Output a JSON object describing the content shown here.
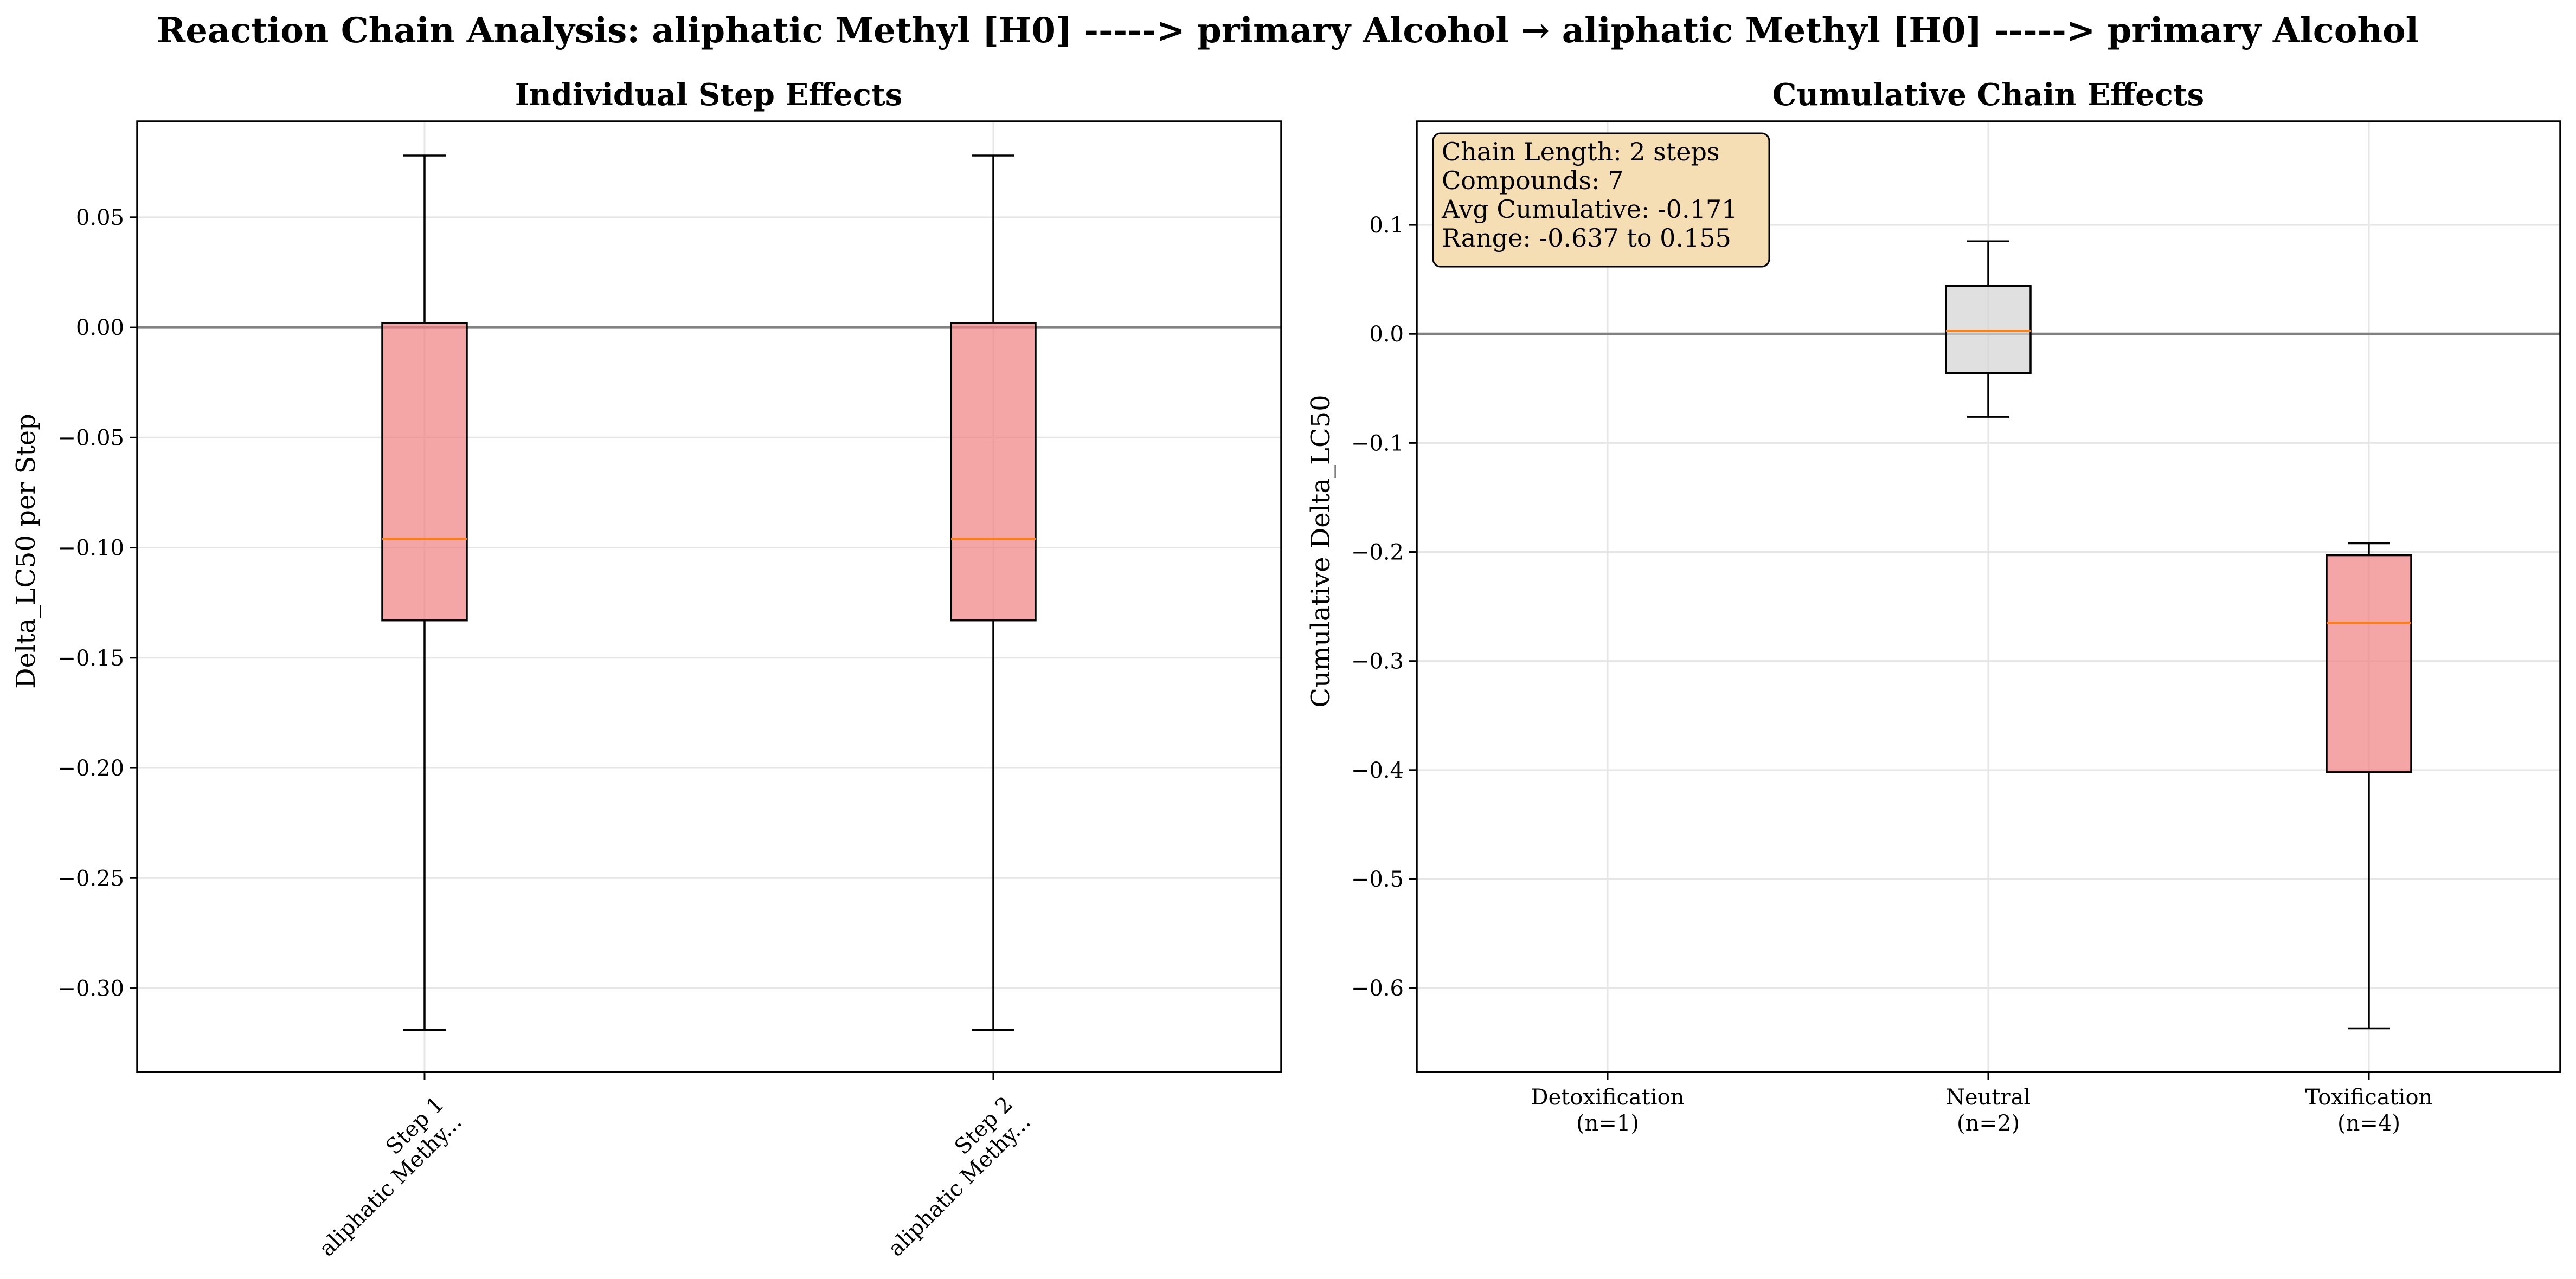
{
  "suptitle": "Reaction Chain Analysis: aliphatic Methyl [H0] -----> primary Alcohol → aliphatic Methyl [H0] -----> primary Alcohol",
  "colors": {
    "red_box": "#f08080",
    "gray_box": "#d3d3d3",
    "median": "#ff7f0e",
    "zero_line": "#808080",
    "grid": "#e6e6e6",
    "info_bg": "#f5deb3"
  },
  "chart_data": [
    {
      "type": "box",
      "title": "Individual Step Effects",
      "xlabel": "",
      "ylabel": "Delta_LC50 per Step",
      "ylim": [
        -0.338,
        0.0935
      ],
      "yticks": [
        0.05,
        0.0,
        -0.05,
        -0.1,
        -0.15,
        -0.2,
        -0.25,
        -0.3
      ],
      "ytick_labels": [
        "0.05",
        "0.00",
        "−0.05",
        "−0.10",
        "−0.15",
        "−0.20",
        "−0.25",
        "−0.30"
      ],
      "grid": true,
      "zero_line": true,
      "categories": [
        "Step 1\naliphatic Methy...",
        "Step 2\naliphatic Methy..."
      ],
      "boxes": [
        {
          "whisker_low": -0.319,
          "q1": -0.133,
          "median": -0.096,
          "q3": 0.002,
          "whisker_high": 0.078,
          "color": "red"
        },
        {
          "whisker_low": -0.319,
          "q1": -0.133,
          "median": -0.096,
          "q3": 0.002,
          "whisker_high": 0.078,
          "color": "red"
        }
      ]
    },
    {
      "type": "box",
      "title": "Cumulative Chain Effects",
      "xlabel": "",
      "ylabel": "Cumulative Delta_LC50",
      "ylim": [
        -0.677,
        0.195
      ],
      "yticks": [
        0.1,
        0.0,
        -0.1,
        -0.2,
        -0.3,
        -0.4,
        -0.5,
        -0.6
      ],
      "ytick_labels": [
        "0.1",
        "0.0",
        "−0.1",
        "−0.2",
        "−0.3",
        "−0.4",
        "−0.5",
        "−0.6"
      ],
      "grid": true,
      "zero_line": true,
      "categories": [
        "Detoxification\n(n=1)",
        "Neutral\n(n=2)",
        "Toxification\n(n=4)"
      ],
      "boxes": [
        null,
        {
          "whisker_low": -0.076,
          "q1": -0.036,
          "median": 0.003,
          "q3": 0.044,
          "whisker_high": 0.085,
          "color": "gray"
        },
        {
          "whisker_low": -0.637,
          "q1": -0.402,
          "median": -0.265,
          "q3": -0.203,
          "whisker_high": -0.192,
          "color": "red"
        }
      ],
      "info_box": [
        "Chain Length: 2 steps",
        "Compounds: 7",
        "Avg Cumulative: -0.171",
        "Range: -0.637 to 0.155"
      ]
    }
  ]
}
